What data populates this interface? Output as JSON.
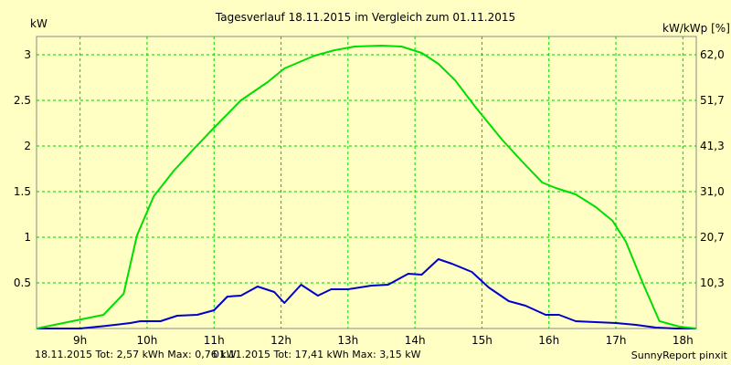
{
  "chart_data": {
    "type": "line",
    "title": "Tagesverlauf 18.11.2015 im Vergleich zum 01.11.2015",
    "ylabel_left": "kW",
    "ylabel_right": "kW/kWp [%]",
    "xlim": [
      8.35,
      18.2
    ],
    "ylim": [
      0,
      3.2
    ],
    "grid": true,
    "x_ticks": [
      {
        "x": 9,
        "label": "9h"
      },
      {
        "x": 10,
        "label": "10h"
      },
      {
        "x": 11,
        "label": "11h"
      },
      {
        "x": 12,
        "label": "12h"
      },
      {
        "x": 13,
        "label": "13h"
      },
      {
        "x": 14,
        "label": "14h"
      },
      {
        "x": 15,
        "label": "15h"
      },
      {
        "x": 16,
        "label": "16h"
      },
      {
        "x": 17,
        "label": "17h"
      },
      {
        "x": 18,
        "label": "18h"
      }
    ],
    "y_ticks_left": [
      {
        "y": 0.5,
        "label": "0.5"
      },
      {
        "y": 1,
        "label": "1"
      },
      {
        "y": 1.5,
        "label": "1.5"
      },
      {
        "y": 2,
        "label": "2"
      },
      {
        "y": 2.5,
        "label": "2.5"
      },
      {
        "y": 3,
        "label": "3"
      }
    ],
    "y_ticks_right": [
      {
        "y": 0.5,
        "label": "10,3"
      },
      {
        "y": 1,
        "label": "20,7"
      },
      {
        "y": 1.5,
        "label": "31,0"
      },
      {
        "y": 2,
        "label": "41,3"
      },
      {
        "y": 2.5,
        "label": "51,7"
      },
      {
        "y": 3,
        "label": "62,0"
      }
    ],
    "series": [
      {
        "color": "#0000cc",
        "x": [
          8.35,
          9.0,
          9.4,
          9.75,
          9.9,
          10.2,
          10.45,
          10.75,
          11.0,
          11.2,
          11.4,
          11.65,
          11.9,
          12.05,
          12.3,
          12.55,
          12.75,
          13.0,
          13.35,
          13.6,
          13.9,
          14.1,
          14.35,
          14.55,
          14.85,
          15.1,
          15.4,
          15.65,
          15.95,
          16.15,
          16.4,
          16.7,
          17.0,
          17.3,
          17.6,
          17.9,
          18.2
        ],
        "values": [
          0,
          0,
          0.03,
          0.06,
          0.08,
          0.08,
          0.14,
          0.15,
          0.2,
          0.35,
          0.36,
          0.46,
          0.4,
          0.28,
          0.48,
          0.36,
          0.43,
          0.43,
          0.47,
          0.48,
          0.6,
          0.59,
          0.76,
          0.71,
          0.62,
          0.45,
          0.3,
          0.25,
          0.15,
          0.15,
          0.08,
          0.07,
          0.06,
          0.04,
          0.01,
          0,
          0
        ]
      },
      {
        "color": "#00dd00",
        "x": [
          8.35,
          9.35,
          9.65,
          9.85,
          10.1,
          10.4,
          10.7,
          11.0,
          11.4,
          11.8,
          12.05,
          12.5,
          12.8,
          13.1,
          13.5,
          13.8,
          14.1,
          14.35,
          14.6,
          14.9,
          15.3,
          15.6,
          15.9,
          16.1,
          16.4,
          16.7,
          16.95,
          17.15,
          17.4,
          17.65,
          17.95,
          18.2
        ],
        "values": [
          0,
          0.15,
          0.38,
          1.02,
          1.45,
          1.73,
          1.97,
          2.2,
          2.5,
          2.7,
          2.85,
          2.99,
          3.05,
          3.09,
          3.1,
          3.09,
          3.02,
          2.9,
          2.72,
          2.43,
          2.07,
          1.83,
          1.6,
          1.54,
          1.47,
          1.33,
          1.18,
          0.95,
          0.5,
          0.08,
          0.02,
          0
        ]
      }
    ]
  },
  "footer": {
    "series1_text": "18.11.2015 Tot: 2,57 kWh Max: 0,76 kW",
    "series2_text": "01.11.2015 Tot: 17,41 kWh Max: 3,15 kW",
    "credit": "SunnyReport pinxit"
  }
}
